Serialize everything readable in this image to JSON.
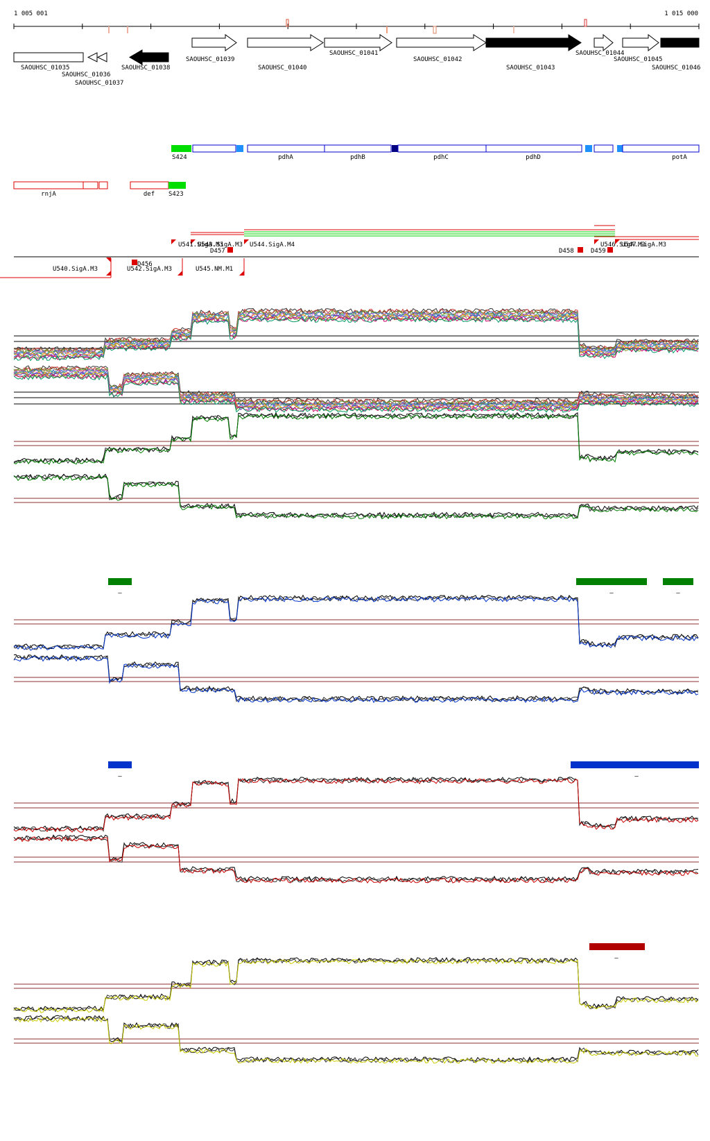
{
  "axis": {
    "start_label": "1 005 001",
    "end_label": "1 015 000",
    "start": 1005001,
    "end": 1015000
  },
  "colors": {
    "gene_outline": "#000000",
    "gene_filled": "#000000",
    "operon_blue": "#0000cc",
    "operon_light_blue": "#1e90ff",
    "operon_dark_blue": "#000080",
    "region_red": "#dd0000",
    "sigma_green": "#00dd00",
    "track_green": "#008000",
    "track_blue": "#0033cc",
    "track_red": "#cc0000",
    "track_yellow": "#cccc00",
    "threshold_line": "#8b2f2f",
    "bar_green": "#008000",
    "bar_blue": "#0033cc",
    "bar_red": "#b00000"
  },
  "genes": [
    {
      "name": "SAOUHSC_01035",
      "strand": "-",
      "filled": false,
      "kind": "box"
    },
    {
      "name": "SAOUHSC_01036",
      "strand": "-",
      "filled": false,
      "kind": "arrow"
    },
    {
      "name": "SAOUHSC_01037",
      "strand": "-",
      "filled": false,
      "kind": "arrow"
    },
    {
      "name": "SAOUHSC_01038",
      "strand": "-",
      "filled": true,
      "kind": "arrow"
    },
    {
      "name": "SAOUHSC_01039",
      "strand": "+",
      "filled": false,
      "kind": "arrow"
    },
    {
      "name": "SAOUHSC_01040",
      "strand": "+",
      "filled": false,
      "kind": "arrow"
    },
    {
      "name": "SAOUHSC_01041",
      "strand": "+",
      "filled": false,
      "kind": "arrow"
    },
    {
      "name": "SAOUHSC_01042",
      "strand": "+",
      "filled": false,
      "kind": "arrow"
    },
    {
      "name": "SAOUHSC_01043",
      "strand": "+",
      "filled": true,
      "kind": "arrow"
    },
    {
      "name": "SAOUHSC_01044",
      "strand": "+",
      "filled": false,
      "kind": "arrow"
    },
    {
      "name": "SAOUHSC_01045",
      "strand": "+",
      "filled": false,
      "kind": "arrow"
    },
    {
      "name": "SAOUHSC_01046",
      "strand": "+",
      "filled": true,
      "kind": "box"
    }
  ],
  "operon_forward": {
    "sigma_label": "S424",
    "labels": [
      "pdhA",
      "pdhB",
      "pdhC",
      "pdhD",
      "potA"
    ]
  },
  "operon_reverse": {
    "labels": [
      "rnjA",
      "def"
    ],
    "sigma_label": "S423"
  },
  "regions": {
    "upper_labels": [
      "U541.SigA.M3",
      "U543.SigA.M3",
      "U544.SigA.M4",
      "U546.SigA.M3",
      "U547.SigA.M3"
    ],
    "d_labels": [
      "D457",
      "D458",
      "D459"
    ],
    "lower_labels": [
      "U540.SigA.M3",
      "U542.SigA.M3",
      "U545.NM.M1",
      "D456"
    ]
  },
  "bar_marks": [
    "–",
    "–",
    "–",
    "–",
    "–",
    "–",
    "–"
  ]
}
